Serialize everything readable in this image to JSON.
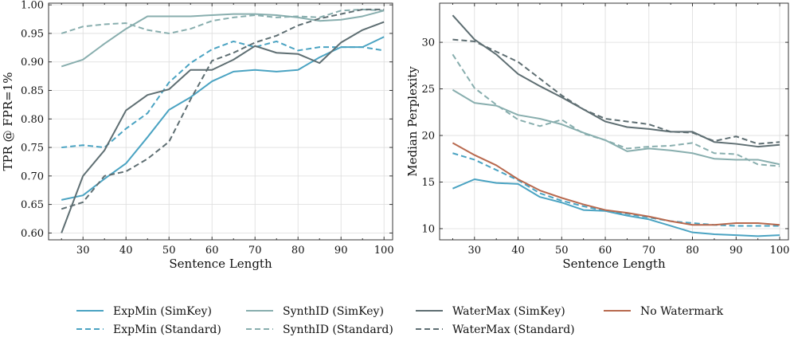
{
  "chart_data": [
    {
      "type": "line",
      "xlabel": "Sentence Length",
      "ylabel": "TPR @ FPR=1%",
      "xlim": [
        22,
        102
      ],
      "ylim": [
        0.588,
        1.003
      ],
      "xticks": [
        30,
        40,
        50,
        60,
        70,
        80,
        90,
        100
      ],
      "yticks": [
        0.6,
        0.65,
        0.7,
        0.75,
        0.8,
        0.85,
        0.9,
        0.95,
        1.0
      ],
      "ytick_labels": [
        "0.60",
        "0.65",
        "0.70",
        "0.75",
        "0.80",
        "0.85",
        "0.90",
        "0.95",
        "1.00"
      ],
      "grid": true,
      "x": [
        25,
        30,
        35,
        40,
        45,
        50,
        55,
        60,
        65,
        70,
        75,
        80,
        85,
        90,
        95,
        100
      ],
      "series": [
        {
          "name": "ExpMin (SimKey)",
          "style": "solid",
          "color": "#4aa3c2",
          "values": [
            0.658,
            0.666,
            0.695,
            0.722,
            0.768,
            0.816,
            0.838,
            0.866,
            0.883,
            0.886,
            0.883,
            0.886,
            0.908,
            0.926,
            0.926,
            0.944
          ]
        },
        {
          "name": "ExpMin (Standard)",
          "style": "dashed",
          "color": "#4aa3c2",
          "values": [
            0.75,
            0.754,
            0.75,
            0.783,
            0.81,
            0.864,
            0.898,
            0.922,
            0.936,
            0.926,
            0.936,
            0.92,
            0.926,
            0.926,
            0.926,
            0.92
          ]
        },
        {
          "name": "SynthID (SimKey)",
          "style": "solid",
          "color": "#88aeae",
          "values": [
            0.892,
            0.904,
            0.932,
            0.958,
            0.98,
            0.98,
            0.98,
            0.982,
            0.984,
            0.984,
            0.982,
            0.978,
            0.972,
            0.974,
            0.98,
            0.99
          ]
        },
        {
          "name": "SynthID (Standard)",
          "style": "dashed",
          "color": "#88aeae",
          "values": [
            0.95,
            0.962,
            0.966,
            0.968,
            0.956,
            0.95,
            0.958,
            0.972,
            0.978,
            0.982,
            0.978,
            0.98,
            0.978,
            0.99,
            0.992,
            0.99
          ]
        },
        {
          "name": "WaterMax (SimKey)",
          "style": "solid",
          "color": "#5e6e72",
          "values": [
            0.6,
            0.7,
            0.745,
            0.815,
            0.842,
            0.852,
            0.886,
            0.886,
            0.904,
            0.928,
            0.916,
            0.914,
            0.898,
            0.934,
            0.956,
            0.97
          ]
        },
        {
          "name": "WaterMax (Standard)",
          "style": "dashed",
          "color": "#5e6e72",
          "values": [
            0.642,
            0.654,
            0.7,
            0.708,
            0.73,
            0.76,
            0.834,
            0.902,
            0.916,
            0.934,
            0.946,
            0.964,
            0.976,
            0.984,
            0.992,
            0.992
          ]
        }
      ]
    },
    {
      "type": "line",
      "xlabel": "Sentence Length",
      "ylabel": "Median Perplexity",
      "xlim": [
        22,
        102
      ],
      "ylim": [
        8.8,
        34.2
      ],
      "xticks": [
        30,
        40,
        50,
        60,
        70,
        80,
        90,
        100
      ],
      "yticks": [
        10,
        15,
        20,
        25,
        30
      ],
      "ytick_labels": [
        "10",
        "15",
        "20",
        "25",
        "30"
      ],
      "grid": true,
      "x": [
        25,
        30,
        35,
        40,
        45,
        50,
        55,
        60,
        65,
        70,
        75,
        80,
        85,
        90,
        95,
        100
      ],
      "series": [
        {
          "name": "ExpMin (SimKey)",
          "style": "solid",
          "color": "#4aa3c2",
          "values": [
            14.3,
            15.3,
            14.9,
            14.8,
            13.4,
            12.8,
            12.0,
            11.9,
            11.4,
            11.0,
            10.3,
            9.6,
            9.4,
            9.3,
            9.2,
            9.3
          ]
        },
        {
          "name": "ExpMin (Standard)",
          "style": "dashed",
          "color": "#4aa3c2",
          "values": [
            18.1,
            17.4,
            16.3,
            15.2,
            13.8,
            13.0,
            12.4,
            11.9,
            11.6,
            11.2,
            10.8,
            10.6,
            10.4,
            10.3,
            10.3,
            10.3
          ]
        },
        {
          "name": "SynthID (SimKey)",
          "style": "solid",
          "color": "#88aeae",
          "values": [
            24.9,
            23.5,
            23.2,
            22.2,
            21.8,
            21.2,
            20.3,
            19.5,
            18.3,
            18.6,
            18.4,
            18.1,
            17.5,
            17.4,
            17.4,
            16.9
          ]
        },
        {
          "name": "SynthID (Standard)",
          "style": "dashed",
          "color": "#88aeae",
          "values": [
            28.7,
            25.1,
            23.3,
            21.7,
            21.0,
            21.7,
            20.2,
            19.5,
            18.6,
            18.8,
            18.9,
            19.2,
            18.1,
            18.0,
            16.9,
            16.7
          ]
        },
        {
          "name": "WaterMax (SimKey)",
          "style": "solid",
          "color": "#5e6e72",
          "values": [
            32.9,
            30.3,
            28.7,
            26.6,
            25.3,
            24.1,
            22.8,
            21.5,
            20.9,
            20.7,
            20.4,
            20.4,
            19.3,
            19.1,
            18.8,
            19.0
          ]
        },
        {
          "name": "WaterMax (Standard)",
          "style": "dashed",
          "color": "#5e6e72",
          "values": [
            30.3,
            30.1,
            29.0,
            27.9,
            26.1,
            24.3,
            22.8,
            21.8,
            21.5,
            21.2,
            20.4,
            20.3,
            19.4,
            19.9,
            19.1,
            19.3
          ]
        },
        {
          "name": "No Watermark",
          "style": "solid",
          "color": "#b8694e",
          "values": [
            19.2,
            17.9,
            16.8,
            15.3,
            14.1,
            13.3,
            12.6,
            12.0,
            11.7,
            11.3,
            10.8,
            10.4,
            10.4,
            10.6,
            10.6,
            10.4
          ]
        }
      ]
    }
  ],
  "legend": {
    "placement": "bottom-center",
    "items": [
      {
        "label": "ExpMin (SimKey)",
        "style": "solid",
        "color": "#4aa3c2"
      },
      {
        "label": "SynthID (SimKey)",
        "style": "solid",
        "color": "#88aeae"
      },
      {
        "label": "WaterMax (SimKey)",
        "style": "solid",
        "color": "#5e6e72"
      },
      {
        "label": "No Watermark",
        "style": "solid",
        "color": "#b8694e"
      },
      {
        "label": "ExpMin (Standard)",
        "style": "dashed",
        "color": "#4aa3c2"
      },
      {
        "label": "SynthID (Standard)",
        "style": "dashed",
        "color": "#88aeae"
      },
      {
        "label": "WaterMax (Standard)",
        "style": "dashed",
        "color": "#5e6e72"
      }
    ]
  }
}
